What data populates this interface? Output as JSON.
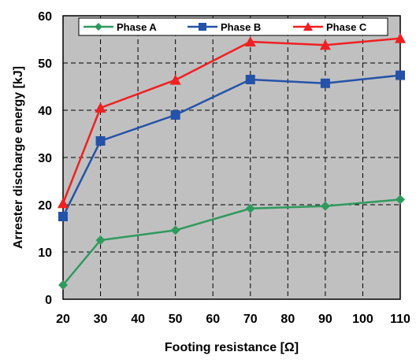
{
  "chart_data": {
    "type": "line",
    "xlabel": "Footing resistance [Ω]",
    "ylabel": "Arrester discharge energy [kJ]",
    "x_ticks": [
      20,
      30,
      40,
      50,
      60,
      70,
      80,
      90,
      100,
      110
    ],
    "y_ticks": [
      0,
      10,
      20,
      30,
      40,
      50,
      60
    ],
    "xlim": [
      20,
      110
    ],
    "ylim": [
      0,
      60
    ],
    "grid": "dashed",
    "legend_position": "top",
    "x": [
      20,
      30,
      50,
      70,
      90,
      110
    ],
    "series": [
      {
        "name": "Phase A",
        "marker": "diamond",
        "color": "#2e9a5c",
        "values": [
          3.0,
          12.5,
          14.6,
          19.2,
          19.7,
          21.1
        ]
      },
      {
        "name": "Phase B",
        "marker": "square",
        "color": "#2452a8",
        "values": [
          17.5,
          33.5,
          39.0,
          46.5,
          45.7,
          47.4
        ]
      },
      {
        "name": "Phase C",
        "marker": "triangle",
        "color": "#f02020",
        "values": [
          20.3,
          40.5,
          46.4,
          54.5,
          53.8,
          55.2
        ]
      }
    ]
  }
}
